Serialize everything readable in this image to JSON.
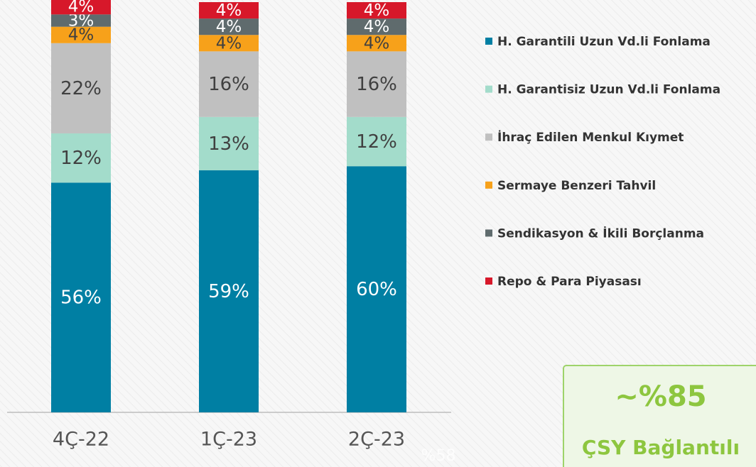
{
  "chart_data": {
    "type": "stacked_bar",
    "categories": [
      "4Ç-22",
      "1Ç-23",
      "2Ç-23"
    ],
    "ylim": [
      0,
      100
    ],
    "series": [
      {
        "name": "H. Garantili Uzun Vd.li Fonlama",
        "color": "#007fa3",
        "label_color": "#ffffff",
        "values": [
          56,
          59,
          60
        ],
        "value_labels": [
          "56%",
          "59%",
          "60%"
        ]
      },
      {
        "name": "H. Garantisiz Uzun Vd.li Fonlama",
        "color": "#a3dccb",
        "label_color": "#404040",
        "values": [
          12,
          13,
          12
        ],
        "value_labels": [
          "12%",
          "13%",
          "12%"
        ]
      },
      {
        "name": "İhraç Edilen Menkul Kıymet",
        "color": "#c0c0c0",
        "label_color": "#404040",
        "values": [
          22,
          16,
          16
        ],
        "value_labels": [
          "22%",
          "16%",
          "16%"
        ]
      },
      {
        "name": "Sermaye Benzeri Tahvil",
        "color": "#f7a11a",
        "label_color": "#404040",
        "values": [
          4,
          4,
          4
        ],
        "value_labels": [
          "4%",
          "4%",
          "4%"
        ]
      },
      {
        "name": "Sendikasyon & İkili Borçlanma",
        "color": "#5f6b6d",
        "label_color": "#ffffff",
        "values": [
          3,
          4,
          4
        ],
        "value_labels": [
          "3%",
          "4%",
          "4%"
        ]
      },
      {
        "name": "Repo & Para Piyasası",
        "color": "#d7182a",
        "label_color": "#ffffff",
        "values": [
          4,
          4,
          4
        ],
        "value_labels": [
          "4%",
          "4%",
          "4%"
        ]
      }
    ],
    "callout": {
      "value": "~%85",
      "label": "ÇSY Bağlantılı"
    },
    "footnote": "%58"
  }
}
